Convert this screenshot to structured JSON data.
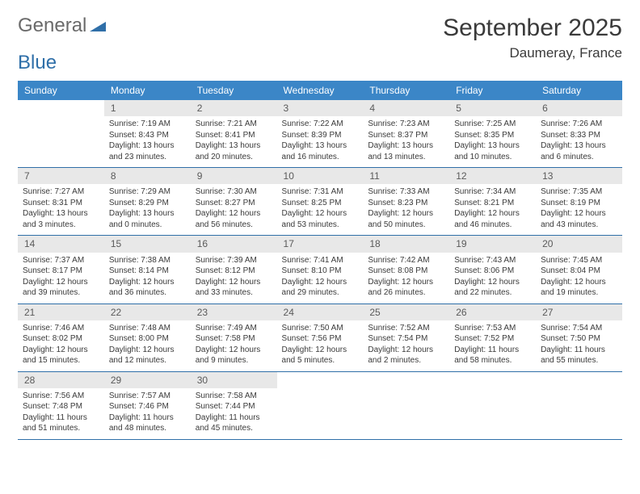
{
  "logo": {
    "part1": "General",
    "part2": "Blue"
  },
  "title": "September 2025",
  "location": "Daumeray, France",
  "colors": {
    "header_bg": "#3b86c7",
    "header_text": "#ffffff",
    "daynum_bg": "#e8e8e8",
    "daynum_text": "#5a5a5a",
    "row_border": "#2f6fa8",
    "body_text": "#3a3a3a",
    "logo_gray": "#6a6a6a",
    "logo_blue": "#2f6fa8",
    "background": "#ffffff"
  },
  "typography": {
    "month_title_size": 30,
    "location_size": 17,
    "header_cell_size": 12,
    "daynum_size": 12,
    "body_size": 10
  },
  "weekdays": [
    "Sunday",
    "Monday",
    "Tuesday",
    "Wednesday",
    "Thursday",
    "Friday",
    "Saturday"
  ],
  "weeks": [
    {
      "nums": [
        "",
        "1",
        "2",
        "3",
        "4",
        "5",
        "6"
      ],
      "cells": [
        {
          "sunrise": "",
          "sunset": "",
          "daylight": ""
        },
        {
          "sunrise": "Sunrise: 7:19 AM",
          "sunset": "Sunset: 8:43 PM",
          "daylight": "Daylight: 13 hours and 23 minutes."
        },
        {
          "sunrise": "Sunrise: 7:21 AM",
          "sunset": "Sunset: 8:41 PM",
          "daylight": "Daylight: 13 hours and 20 minutes."
        },
        {
          "sunrise": "Sunrise: 7:22 AM",
          "sunset": "Sunset: 8:39 PM",
          "daylight": "Daylight: 13 hours and 16 minutes."
        },
        {
          "sunrise": "Sunrise: 7:23 AM",
          "sunset": "Sunset: 8:37 PM",
          "daylight": "Daylight: 13 hours and 13 minutes."
        },
        {
          "sunrise": "Sunrise: 7:25 AM",
          "sunset": "Sunset: 8:35 PM",
          "daylight": "Daylight: 13 hours and 10 minutes."
        },
        {
          "sunrise": "Sunrise: 7:26 AM",
          "sunset": "Sunset: 8:33 PM",
          "daylight": "Daylight: 13 hours and 6 minutes."
        }
      ]
    },
    {
      "nums": [
        "7",
        "8",
        "9",
        "10",
        "11",
        "12",
        "13"
      ],
      "cells": [
        {
          "sunrise": "Sunrise: 7:27 AM",
          "sunset": "Sunset: 8:31 PM",
          "daylight": "Daylight: 13 hours and 3 minutes."
        },
        {
          "sunrise": "Sunrise: 7:29 AM",
          "sunset": "Sunset: 8:29 PM",
          "daylight": "Daylight: 13 hours and 0 minutes."
        },
        {
          "sunrise": "Sunrise: 7:30 AM",
          "sunset": "Sunset: 8:27 PM",
          "daylight": "Daylight: 12 hours and 56 minutes."
        },
        {
          "sunrise": "Sunrise: 7:31 AM",
          "sunset": "Sunset: 8:25 PM",
          "daylight": "Daylight: 12 hours and 53 minutes."
        },
        {
          "sunrise": "Sunrise: 7:33 AM",
          "sunset": "Sunset: 8:23 PM",
          "daylight": "Daylight: 12 hours and 50 minutes."
        },
        {
          "sunrise": "Sunrise: 7:34 AM",
          "sunset": "Sunset: 8:21 PM",
          "daylight": "Daylight: 12 hours and 46 minutes."
        },
        {
          "sunrise": "Sunrise: 7:35 AM",
          "sunset": "Sunset: 8:19 PM",
          "daylight": "Daylight: 12 hours and 43 minutes."
        }
      ]
    },
    {
      "nums": [
        "14",
        "15",
        "16",
        "17",
        "18",
        "19",
        "20"
      ],
      "cells": [
        {
          "sunrise": "Sunrise: 7:37 AM",
          "sunset": "Sunset: 8:17 PM",
          "daylight": "Daylight: 12 hours and 39 minutes."
        },
        {
          "sunrise": "Sunrise: 7:38 AM",
          "sunset": "Sunset: 8:14 PM",
          "daylight": "Daylight: 12 hours and 36 minutes."
        },
        {
          "sunrise": "Sunrise: 7:39 AM",
          "sunset": "Sunset: 8:12 PM",
          "daylight": "Daylight: 12 hours and 33 minutes."
        },
        {
          "sunrise": "Sunrise: 7:41 AM",
          "sunset": "Sunset: 8:10 PM",
          "daylight": "Daylight: 12 hours and 29 minutes."
        },
        {
          "sunrise": "Sunrise: 7:42 AM",
          "sunset": "Sunset: 8:08 PM",
          "daylight": "Daylight: 12 hours and 26 minutes."
        },
        {
          "sunrise": "Sunrise: 7:43 AM",
          "sunset": "Sunset: 8:06 PM",
          "daylight": "Daylight: 12 hours and 22 minutes."
        },
        {
          "sunrise": "Sunrise: 7:45 AM",
          "sunset": "Sunset: 8:04 PM",
          "daylight": "Daylight: 12 hours and 19 minutes."
        }
      ]
    },
    {
      "nums": [
        "21",
        "22",
        "23",
        "24",
        "25",
        "26",
        "27"
      ],
      "cells": [
        {
          "sunrise": "Sunrise: 7:46 AM",
          "sunset": "Sunset: 8:02 PM",
          "daylight": "Daylight: 12 hours and 15 minutes."
        },
        {
          "sunrise": "Sunrise: 7:48 AM",
          "sunset": "Sunset: 8:00 PM",
          "daylight": "Daylight: 12 hours and 12 minutes."
        },
        {
          "sunrise": "Sunrise: 7:49 AM",
          "sunset": "Sunset: 7:58 PM",
          "daylight": "Daylight: 12 hours and 9 minutes."
        },
        {
          "sunrise": "Sunrise: 7:50 AM",
          "sunset": "Sunset: 7:56 PM",
          "daylight": "Daylight: 12 hours and 5 minutes."
        },
        {
          "sunrise": "Sunrise: 7:52 AM",
          "sunset": "Sunset: 7:54 PM",
          "daylight": "Daylight: 12 hours and 2 minutes."
        },
        {
          "sunrise": "Sunrise: 7:53 AM",
          "sunset": "Sunset: 7:52 PM",
          "daylight": "Daylight: 11 hours and 58 minutes."
        },
        {
          "sunrise": "Sunrise: 7:54 AM",
          "sunset": "Sunset: 7:50 PM",
          "daylight": "Daylight: 11 hours and 55 minutes."
        }
      ]
    },
    {
      "nums": [
        "28",
        "29",
        "30",
        "",
        "",
        "",
        ""
      ],
      "cells": [
        {
          "sunrise": "Sunrise: 7:56 AM",
          "sunset": "Sunset: 7:48 PM",
          "daylight": "Daylight: 11 hours and 51 minutes."
        },
        {
          "sunrise": "Sunrise: 7:57 AM",
          "sunset": "Sunset: 7:46 PM",
          "daylight": "Daylight: 11 hours and 48 minutes."
        },
        {
          "sunrise": "Sunrise: 7:58 AM",
          "sunset": "Sunset: 7:44 PM",
          "daylight": "Daylight: 11 hours and 45 minutes."
        },
        {
          "sunrise": "",
          "sunset": "",
          "daylight": ""
        },
        {
          "sunrise": "",
          "sunset": "",
          "daylight": ""
        },
        {
          "sunrise": "",
          "sunset": "",
          "daylight": ""
        },
        {
          "sunrise": "",
          "sunset": "",
          "daylight": ""
        }
      ]
    }
  ]
}
